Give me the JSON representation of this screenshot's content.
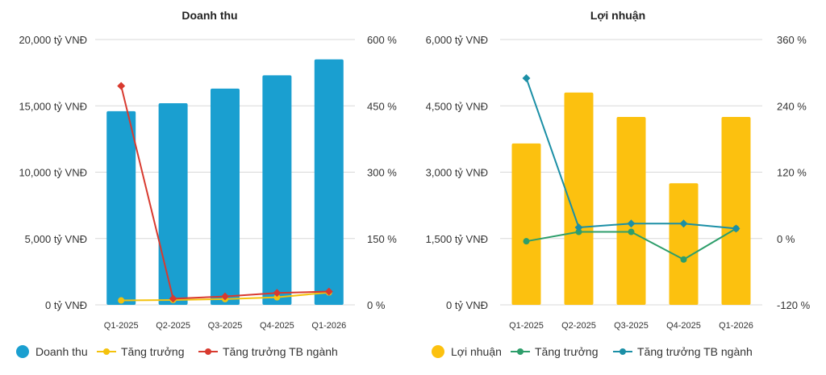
{
  "chart_data": [
    {
      "type": "bar",
      "title": "Doanh thu",
      "categories": [
        "Q1-2025",
        "Q2-2025",
        "Q3-2025",
        "Q4-2025",
        "Q1-2026"
      ],
      "y_left": {
        "range": [
          0,
          20000
        ],
        "ticks": [
          0,
          5000,
          10000,
          15000,
          20000
        ],
        "tick_labels": [
          "0 tỷ VNĐ",
          "5,000 tỷ VNĐ",
          "10,000 tỷ VNĐ",
          "15,000 tỷ VNĐ",
          "20,000 tỷ VNĐ"
        ]
      },
      "y_right": {
        "range": [
          0,
          600
        ],
        "ticks": [
          0,
          150,
          300,
          450,
          600
        ],
        "tick_labels": [
          "0 %",
          "150 %",
          "300 %",
          "450 %",
          "600 %"
        ]
      },
      "bars": {
        "name": "Doanh thu",
        "color": "#1a9fd0",
        "values": [
          14600,
          15200,
          16300,
          17300,
          18500
        ]
      },
      "series": [
        {
          "name": "Tăng trưởng",
          "axis": "right",
          "color": "#f4c20d",
          "values": [
            10,
            11,
            13,
            17,
            28
          ]
        },
        {
          "name": "Tăng trưởng TB ngành",
          "axis": "right",
          "color": "#d83a2f",
          "values": [
            495,
            14,
            19,
            27,
            30
          ]
        }
      ],
      "grid": true,
      "legend": "bottom"
    },
    {
      "type": "bar",
      "title": "Lợi nhuận",
      "categories": [
        "Q1-2025",
        "Q2-2025",
        "Q3-2025",
        "Q4-2025",
        "Q1-2026"
      ],
      "y_left": {
        "range": [
          0,
          6000
        ],
        "ticks": [
          0,
          1500,
          3000,
          4500,
          6000
        ],
        "tick_labels": [
          "0 tỷ VNĐ",
          "1,500 tỷ VNĐ",
          "3,000 tỷ VNĐ",
          "4,500 tỷ VNĐ",
          "6,000 tỷ VNĐ"
        ]
      },
      "y_right": {
        "range": [
          -120,
          360
        ],
        "ticks": [
          -120,
          0,
          120,
          240,
          360
        ],
        "tick_labels": [
          "-120 %",
          "0 %",
          "120 %",
          "240 %",
          "360 %"
        ]
      },
      "bars": {
        "name": "Lợi nhuận",
        "color": "#fcc10f",
        "values": [
          3650,
          4800,
          4250,
          2750,
          4250
        ]
      },
      "series": [
        {
          "name": "Tăng trưởng",
          "axis": "right",
          "color": "#2e9e6b",
          "values": [
            -5,
            12,
            12,
            -38,
            18
          ]
        },
        {
          "name": "Tăng trưởng TB ngành",
          "axis": "right",
          "color": "#1b8fa6",
          "values": [
            290,
            20,
            27,
            27,
            18
          ]
        }
      ],
      "grid": true,
      "legend": "bottom"
    }
  ]
}
